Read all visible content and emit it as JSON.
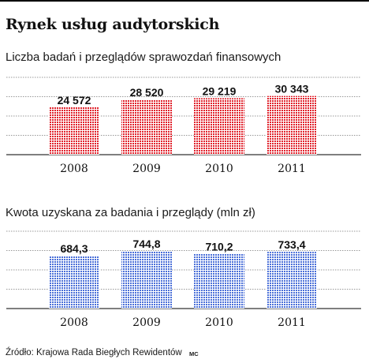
{
  "title": "Rynek usług audytorskich",
  "source": "Źródło: Krajowa Rada Biegłych Rewidentów",
  "credit": "MC",
  "chart_data": [
    {
      "type": "bar",
      "title": "Liczba badań i przeglądów sprawozdań finansowych",
      "categories": [
        "2008",
        "2009",
        "2010",
        "2011"
      ],
      "values": [
        24572,
        28520,
        29219,
        30343
      ],
      "value_labels": [
        "24 572",
        "28 520",
        "29 219",
        "30 343"
      ],
      "ylim": [
        0,
        40000
      ],
      "grid": true,
      "bar_color": "#e0202a",
      "pattern": "dotted"
    },
    {
      "type": "bar",
      "title": "Kwota uzyskana za badania i przeglądy (mln zł)",
      "categories": [
        "2008",
        "2009",
        "2010",
        "2011"
      ],
      "values": [
        684.3,
        744.8,
        710.2,
        733.4
      ],
      "value_labels": [
        "684,3",
        "744,8",
        "710,2",
        "733,4"
      ],
      "ylim": [
        0,
        1000
      ],
      "grid": true,
      "bar_color": "#4a6fd8",
      "pattern": "dotted"
    }
  ]
}
